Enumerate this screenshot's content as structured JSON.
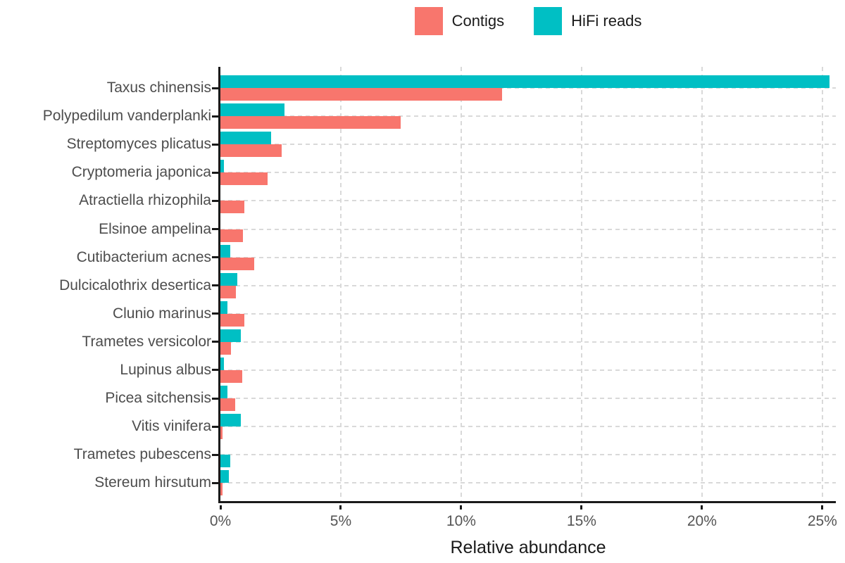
{
  "chart_data": {
    "type": "bar",
    "orientation": "horizontal",
    "title": "",
    "xlabel": "Relative abundance",
    "ylabel": "",
    "x_ticks": [
      "0%",
      "5%",
      "10%",
      "15%",
      "20%",
      "25%"
    ],
    "x_tick_values": [
      0,
      5,
      10,
      15,
      20,
      25
    ],
    "xlim": [
      0,
      25.56
    ],
    "grid": "dashed",
    "legend_position": "top-center",
    "categories": [
      "Taxus chinensis",
      "Polypedilum vanderplanki",
      "Streptomyces plicatus",
      "Cryptomeria japonica",
      "Atractiella rhizophila",
      "Elsinoe ampelina",
      "Cutibacterium acnes",
      "Dulcicalothrix desertica",
      "Clunio marinus",
      "Trametes versicolor",
      "Lupinus albus",
      "Picea sitchensis",
      "Vitis vinifera",
      "Trametes pubescens",
      "Stereum hirsutum"
    ],
    "series": [
      {
        "name": "Contigs",
        "color": "#F8766D",
        "values": [
          11.7,
          7.5,
          2.55,
          1.95,
          1.0,
          0.95,
          1.4,
          0.65,
          1.0,
          0.45,
          0.9,
          0.6,
          0.1,
          0,
          0.1
        ]
      },
      {
        "name": "HiFi reads",
        "color": "#00BFC4",
        "values": [
          25.3,
          2.65,
          2.1,
          0.15,
          0,
          0,
          0.4,
          0.7,
          0.3,
          0.85,
          0.15,
          0.3,
          0.85,
          0.4,
          0.35
        ]
      }
    ],
    "bar_order": "HiFi reads bar above Contigs bar within each category",
    "swap_rows": [
      "Trametes pubescens"
    ],
    "colors": {
      "axis": "#1a1a1a",
      "tick_label": "#555555",
      "category_label": "#4d4d4d",
      "gridline": "#d9d9d9",
      "background": "#ffffff"
    }
  }
}
